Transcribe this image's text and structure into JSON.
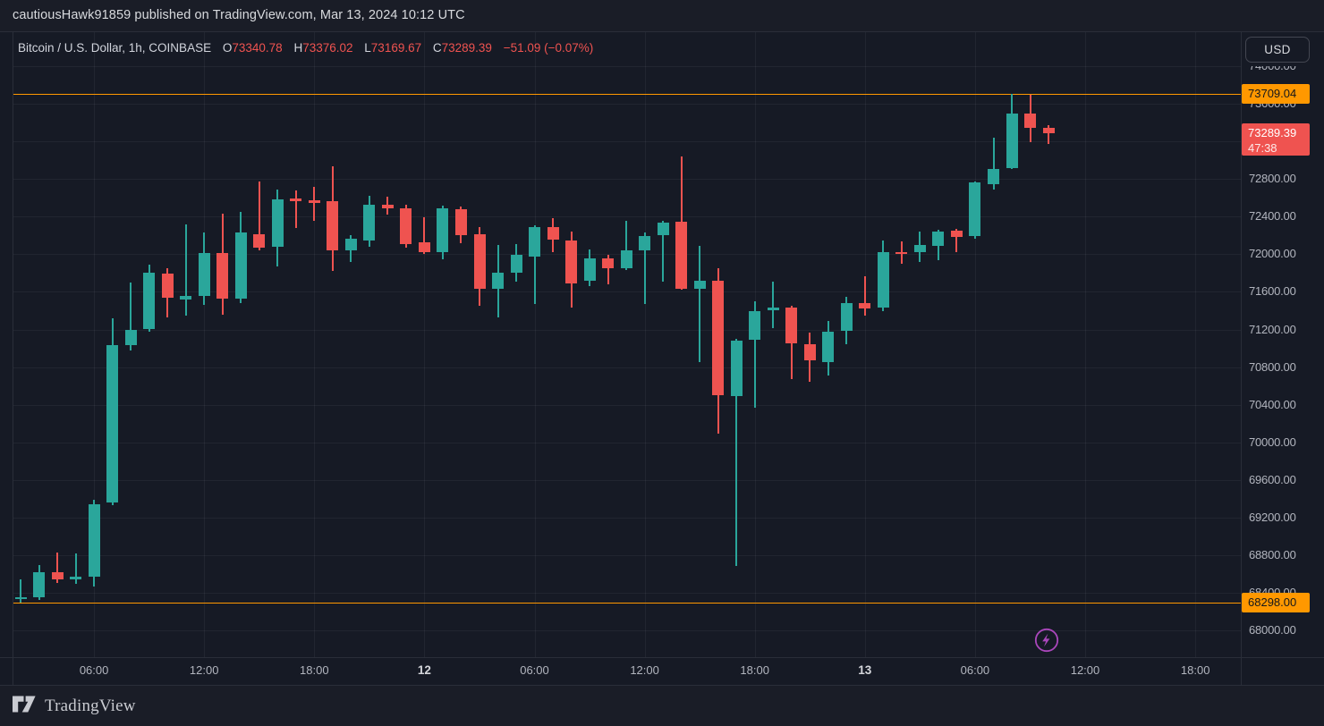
{
  "publish_bar": {
    "text": "cautiousHawk91859 published on TradingView.com, Mar 13, 2024 10:12 UTC"
  },
  "legend": {
    "symbol": "Bitcoin / U.S. Dollar, 1h, COINBASE",
    "o_label": "O",
    "o_value": "73340.78",
    "h_label": "H",
    "h_value": "73376.02",
    "l_label": "L",
    "l_value": "73169.67",
    "c_label": "C",
    "c_value": "73289.39",
    "change": "−51.09 (−0.07%)"
  },
  "currency_button": {
    "label": "USD"
  },
  "watermark": {
    "brand": "TradingView"
  },
  "colors": {
    "up": "#2aa69b",
    "down": "#ef5350",
    "price_line": "#ff9800",
    "price_line_text": "#14171c",
    "last_badge": "#ef5350",
    "boost": "#ab47bc"
  },
  "price_axis": {
    "labels": [
      {
        "text": "74000.00",
        "value": 74000
      },
      {
        "text": "73600.00",
        "value": 73600
      },
      {
        "text": "73200.00",
        "value": 73200
      },
      {
        "text": "72800.00",
        "value": 72800
      },
      {
        "text": "72400.00",
        "value": 72400
      },
      {
        "text": "72000.00",
        "value": 72000
      },
      {
        "text": "71600.00",
        "value": 71600
      },
      {
        "text": "71200.00",
        "value": 71200
      },
      {
        "text": "70800.00",
        "value": 70800
      },
      {
        "text": "70400.00",
        "value": 70400
      },
      {
        "text": "70000.00",
        "value": 70000
      },
      {
        "text": "69600.00",
        "value": 69600
      },
      {
        "text": "69200.00",
        "value": 69200
      },
      {
        "text": "68800.00",
        "value": 68800
      },
      {
        "text": "68400.00",
        "value": 68400
      },
      {
        "text": "68000.00",
        "value": 68000
      }
    ]
  },
  "time_axis": {
    "ticks": [
      {
        "label": "06:00",
        "i": 4,
        "bold": false
      },
      {
        "label": "12:00",
        "i": 10,
        "bold": false
      },
      {
        "label": "18:00",
        "i": 16,
        "bold": false
      },
      {
        "label": "12",
        "i": 22,
        "bold": true
      },
      {
        "label": "06:00",
        "i": 28,
        "bold": false
      },
      {
        "label": "12:00",
        "i": 34,
        "bold": false
      },
      {
        "label": "18:00",
        "i": 40,
        "bold": false
      },
      {
        "label": "13",
        "i": 46,
        "bold": true
      },
      {
        "label": "06:00",
        "i": 52,
        "bold": false
      },
      {
        "label": "12:00",
        "i": 58,
        "bold": false
      },
      {
        "label": "18:00",
        "i": 64,
        "bold": false
      }
    ]
  },
  "high_line_badge": "73709.04",
  "low_line_badge": "68298.00",
  "last_badge": {
    "price": "73289.39",
    "countdown": "47:38"
  },
  "chart_data": {
    "type": "candlestick",
    "symbol": "Bitcoin / U.S. Dollar",
    "ticker": "BTCUSD",
    "exchange": "COINBASE",
    "interval": "1h",
    "date_range": "Mar 11 2024 02:00 — Mar 13 2024 10:00 UTC",
    "ylim": [
      68000,
      74000
    ],
    "grid_step": 400,
    "grid": true,
    "legend_position": "top-left",
    "annotations": [
      {
        "type": "hline",
        "value": 73709.04,
        "label": "73709.04",
        "color": "#ff9800"
      },
      {
        "type": "hline",
        "value": 68298.0,
        "label": "68298.00",
        "color": "#ff9800"
      }
    ],
    "last": {
      "price": 73289.39,
      "change": -51.09,
      "change_pct": -0.07,
      "countdown": "47:38"
    },
    "candles": [
      [
        "Mar 11 02:00",
        68340,
        68545,
        68298,
        68355
      ],
      [
        "Mar 11 03:00",
        68355,
        68690,
        68320,
        68620
      ],
      [
        "Mar 11 04:00",
        68620,
        68830,
        68500,
        68545
      ],
      [
        "Mar 11 05:00",
        68545,
        68820,
        68490,
        68570
      ],
      [
        "Mar 11 06:00",
        68570,
        69390,
        68470,
        69345
      ],
      [
        "Mar 11 07:00",
        69355,
        71315,
        69330,
        71030
      ],
      [
        "Mar 11 08:00",
        71030,
        71700,
        70975,
        71200
      ],
      [
        "Mar 11 09:00",
        71200,
        71890,
        71180,
        71800
      ],
      [
        "Mar 11 10:00",
        71790,
        71855,
        71325,
        71535
      ],
      [
        "Mar 11 11:00",
        71520,
        72315,
        71345,
        71560
      ],
      [
        "Mar 11 12:00",
        71560,
        72230,
        71460,
        72010
      ],
      [
        "Mar 11 13:00",
        72010,
        72430,
        71355,
        71525
      ],
      [
        "Mar 11 14:00",
        71525,
        72450,
        71485,
        72230
      ],
      [
        "Mar 11 15:00",
        72215,
        72770,
        72040,
        72070
      ],
      [
        "Mar 11 16:00",
        72080,
        72690,
        71870,
        72580
      ],
      [
        "Mar 11 17:00",
        72590,
        72680,
        72280,
        72575
      ],
      [
        "Mar 11 18:00",
        72570,
        72715,
        72350,
        72555
      ],
      [
        "Mar 11 19:00",
        72565,
        72940,
        71820,
        72040
      ],
      [
        "Mar 11 20:00",
        72040,
        72200,
        71915,
        72165
      ],
      [
        "Mar 11 21:00",
        72150,
        72625,
        72075,
        72530
      ],
      [
        "Mar 11 22:00",
        72530,
        72610,
        72420,
        72490
      ],
      [
        "Mar 11 23:00",
        72490,
        72530,
        72070,
        72105
      ],
      [
        "Mar 12 00:00",
        72130,
        72390,
        72005,
        72025
      ],
      [
        "Mar 12 01:00",
        72025,
        72515,
        71945,
        72490
      ],
      [
        "Mar 12 02:00",
        72480,
        72505,
        72120,
        72200
      ],
      [
        "Mar 12 03:00",
        72210,
        72290,
        71450,
        71630
      ],
      [
        "Mar 12 04:00",
        71630,
        72100,
        71325,
        71800
      ],
      [
        "Mar 12 05:00",
        71800,
        72110,
        71705,
        71990
      ],
      [
        "Mar 12 06:00",
        71975,
        72310,
        71470,
        72290
      ],
      [
        "Mar 12 07:00",
        72290,
        72380,
        72025,
        72155
      ],
      [
        "Mar 12 08:00",
        72150,
        72240,
        71435,
        71690
      ],
      [
        "Mar 12 09:00",
        71720,
        72055,
        71665,
        71960
      ],
      [
        "Mar 12 10:00",
        71960,
        71990,
        71675,
        71850
      ],
      [
        "Mar 12 11:00",
        71850,
        72355,
        71830,
        72040
      ],
      [
        "Mar 12 12:00",
        72040,
        72230,
        71470,
        72195
      ],
      [
        "Mar 12 13:00",
        72200,
        72360,
        71705,
        72340
      ],
      [
        "Mar 12 14:00",
        72345,
        73040,
        71625,
        71635
      ],
      [
        "Mar 12 15:00",
        71630,
        72085,
        70850,
        71720
      ],
      [
        "Mar 12 16:00",
        71720,
        71850,
        70090,
        70500
      ],
      [
        "Mar 12 17:00",
        70495,
        71105,
        68690,
        71085
      ],
      [
        "Mar 12 18:00",
        71090,
        71500,
        70365,
        71395
      ],
      [
        "Mar 12 19:00",
        71410,
        71705,
        71215,
        71430
      ],
      [
        "Mar 12 20:00",
        71435,
        71455,
        70675,
        71055
      ],
      [
        "Mar 12 21:00",
        71045,
        71165,
        70645,
        70870
      ],
      [
        "Mar 12 22:00",
        70850,
        71290,
        70715,
        71180
      ],
      [
        "Mar 12 23:00",
        71185,
        71545,
        71040,
        71480
      ],
      [
        "Mar 13 00:00",
        71485,
        71770,
        71345,
        71420
      ],
      [
        "Mar 13 01:00",
        71435,
        72145,
        71390,
        72020
      ],
      [
        "Mar 13 02:00",
        72025,
        72135,
        71895,
        72015
      ],
      [
        "Mar 13 03:00",
        72020,
        72245,
        71920,
        72095
      ],
      [
        "Mar 13 04:00",
        72090,
        72260,
        71935,
        72245
      ],
      [
        "Mar 13 05:00",
        72250,
        72270,
        72025,
        72185
      ],
      [
        "Mar 13 06:00",
        72190,
        72775,
        72165,
        72760
      ],
      [
        "Mar 13 07:00",
        72740,
        73240,
        72690,
        72910
      ],
      [
        "Mar 13 08:00",
        72920,
        73709.04,
        72910,
        73495
      ],
      [
        "Mar 13 09:00",
        73495,
        73700,
        73195,
        73340.78
      ],
      [
        "Mar 13 10:00",
        73340.78,
        73376.02,
        73169.67,
        73289.39
      ]
    ]
  }
}
